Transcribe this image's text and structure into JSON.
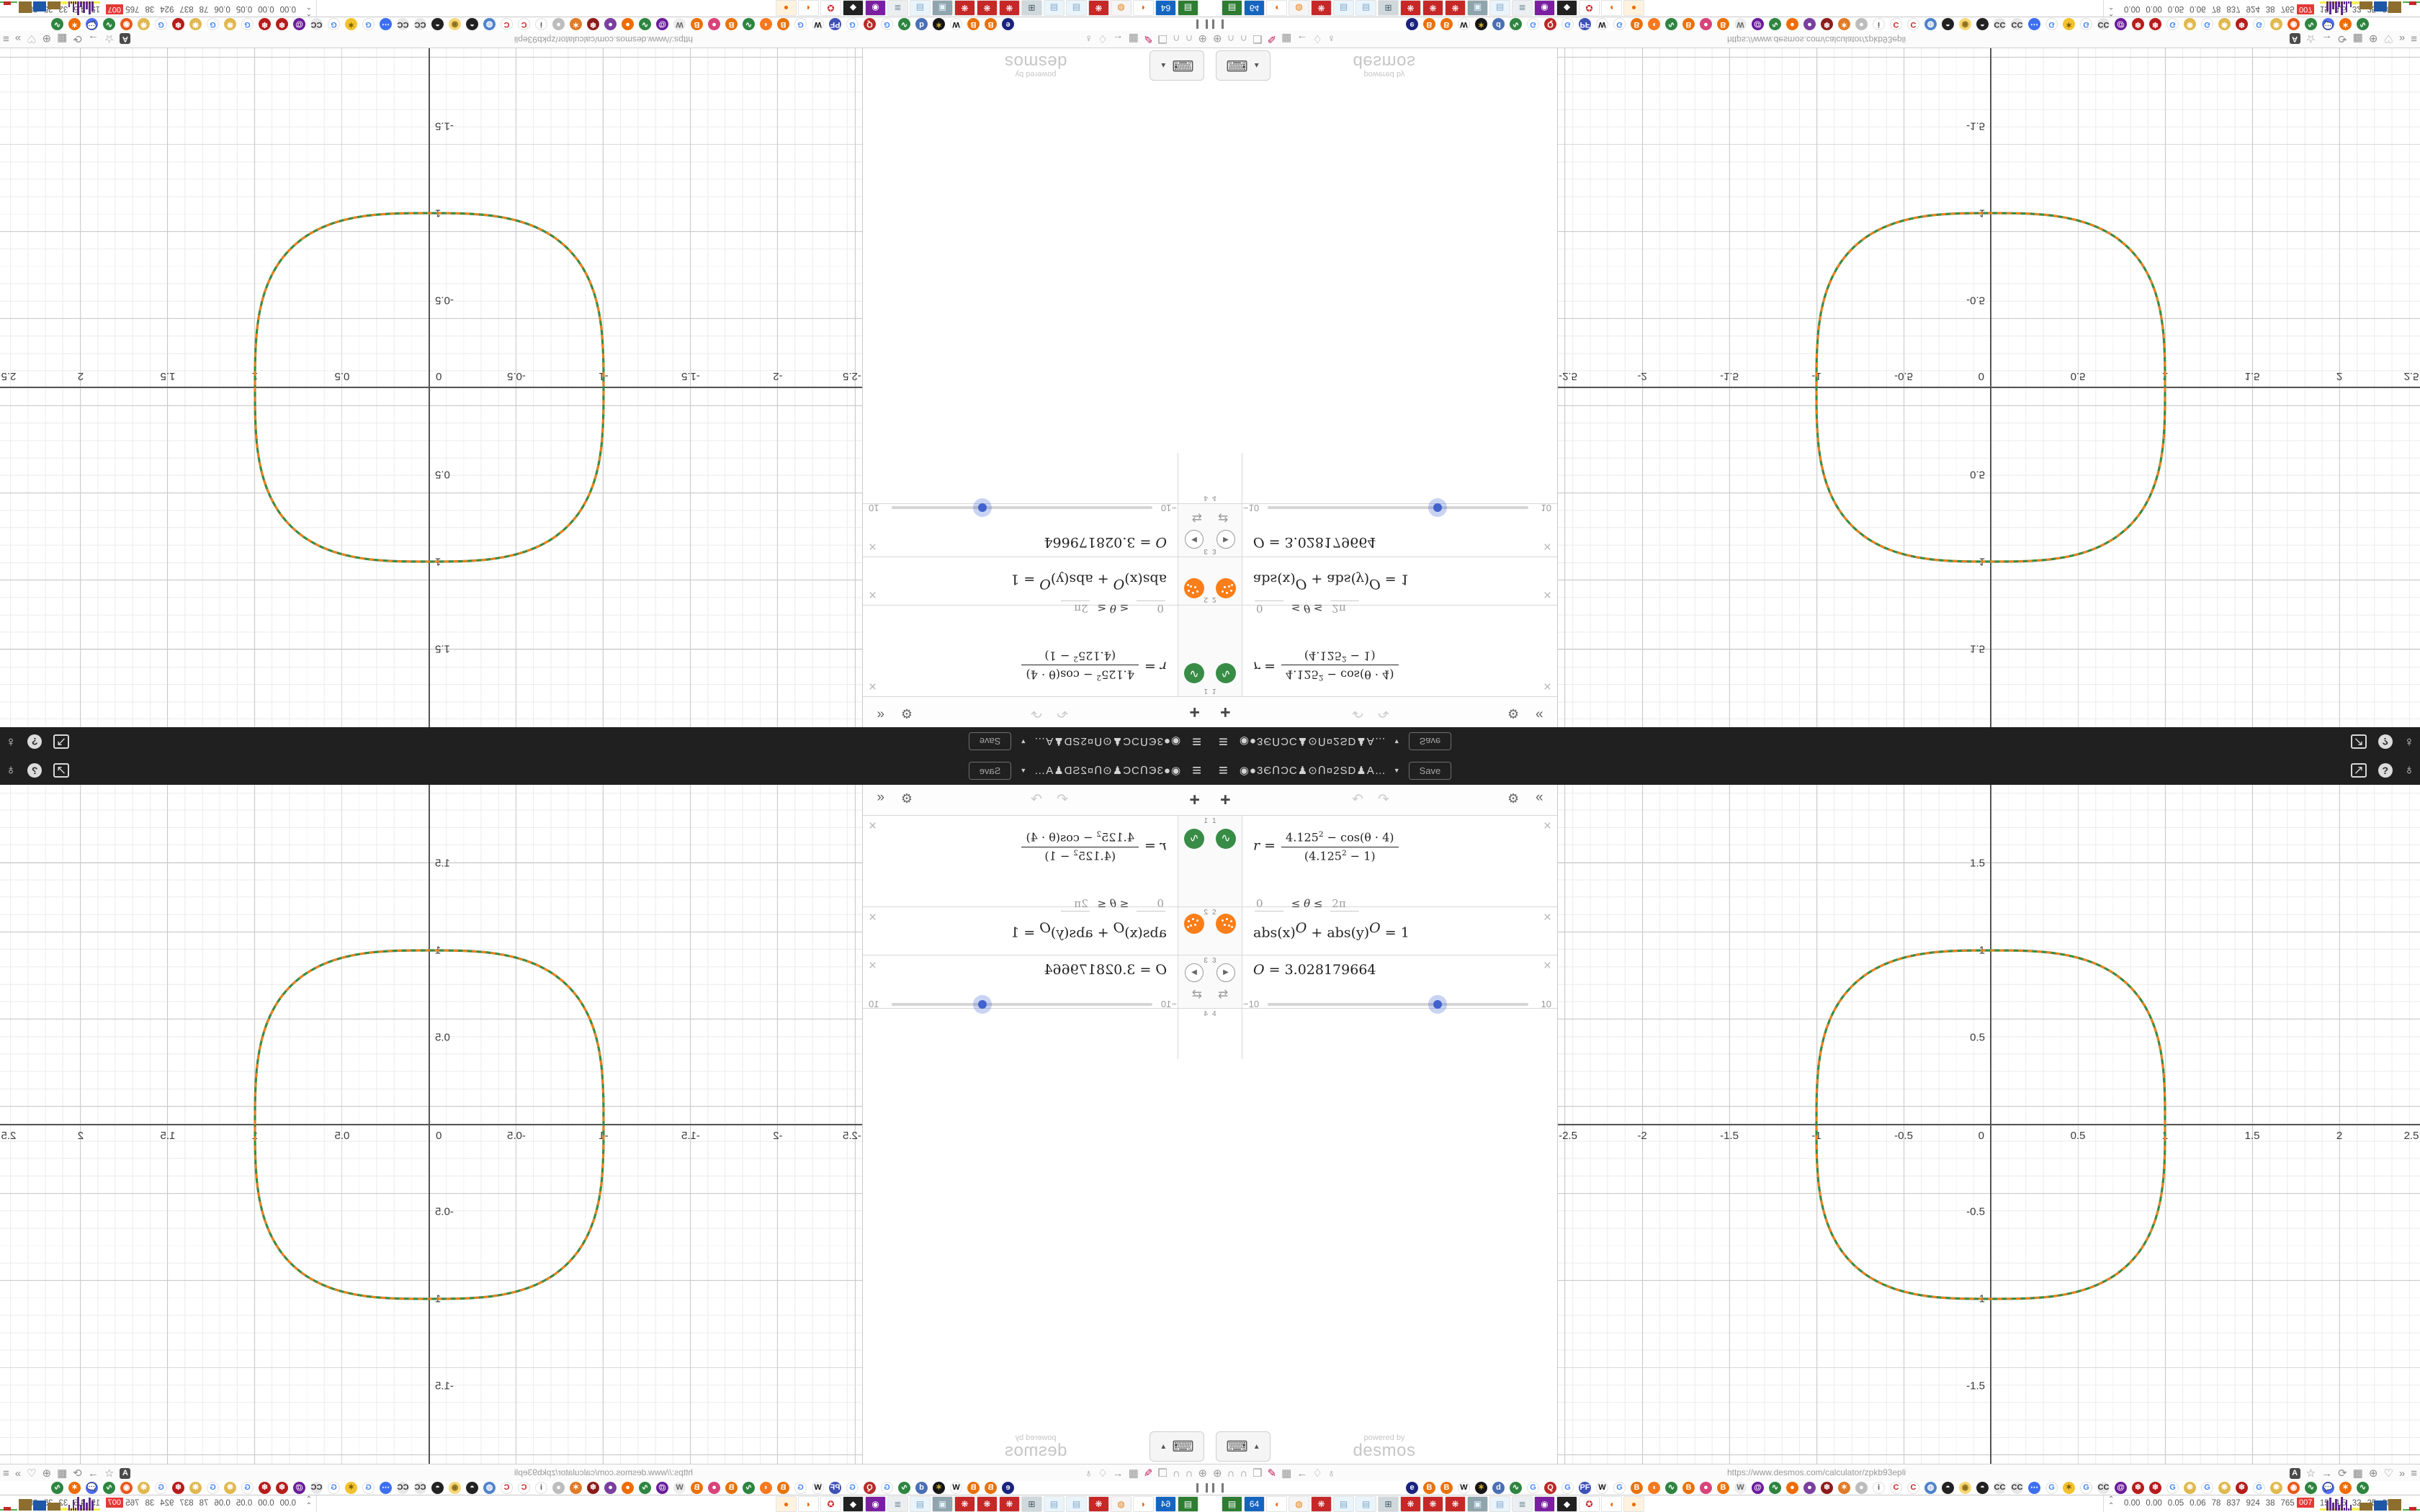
{
  "titlebar": {
    "menu_icon": "≡",
    "graph_title": "◉●3ЄՈƆC♟⊙Ո¤2SD♟A…",
    "caret": "▼",
    "save_label": "Save",
    "share_icon": "↗",
    "help_icon": "?",
    "globe_icon": "♁"
  },
  "expr_toolbar": {
    "add": "+",
    "undo": "↶",
    "redo": "↷",
    "gear": "⚙",
    "collapse": "«"
  },
  "ui": {
    "close": "×",
    "wave_icon": "∿",
    "play_icon": "▶",
    "loop_icon": "⇄"
  },
  "rows": [
    {
      "num": "1",
      "math": {
        "lhs": "r =",
        "num_base": "4.125",
        "num_sup": "2",
        "num_rest": " − cos(θ · 4)",
        "den_open": "(",
        "den_base": "4.125",
        "den_sup": "2",
        "den_rest": " − 1)"
      },
      "domain": {
        "lo": "0",
        "rel": "≤ θ ≤",
        "hi": "2π"
      }
    },
    {
      "num": "2",
      "math": {
        "a": "abs(x)",
        "supa": "O",
        "b": " + abs(y)",
        "supb": "O",
        "c": " = 1"
      }
    },
    {
      "num": "3",
      "math": {
        "var": "O",
        "val": " = 3.028179664"
      },
      "slider": {
        "min": "−10",
        "max": "10",
        "value": 3.028179664,
        "pct": 65.1
      }
    },
    {
      "num": "4"
    }
  ],
  "keyboard_chip": {
    "icon": "⌨",
    "caret": "▲"
  },
  "watermark": {
    "line1": "powered by",
    "line2": "desmos"
  },
  "graph": {
    "x_labels": [
      "-2.5",
      "-2",
      "-1.5",
      "-1",
      "-0.5",
      "0",
      "0.5",
      "1",
      "1.5",
      "2",
      "2.5"
    ],
    "x_values": [
      -2.5,
      -2,
      -1.5,
      -1,
      -0.5,
      0,
      0.5,
      1,
      1.5,
      2,
      2.5
    ],
    "y_labels": [
      "1.5",
      "1",
      "0.5",
      "-0.5",
      "-1",
      "-1.5"
    ],
    "y_values": [
      1.5,
      1,
      0.5,
      -0.5,
      -1,
      -1.5
    ],
    "controls": {
      "plus": "+",
      "minus": "−",
      "home": "⌂"
    },
    "curve_green": "#388c46",
    "curve_orange": "#fa7e19"
  },
  "chart_data": {
    "type": "line",
    "equations": [
      "r = (4.125² − cos(θ·4)) / (4.125² − 1), 0 ≤ θ ≤ 2π",
      "abs(x)^O + abs(y)^O = 1",
      "O = 3.028179664 (slider −10 to 10)"
    ],
    "series": [
      {
        "name": "polar curve r=(4.125²−cos(θ·4))/(4.125²−1)",
        "color": "#388c46",
        "style": "solid"
      },
      {
        "name": "superellipse abs(x)^O+abs(y)^O=1",
        "color": "#fa7e19",
        "style": "dashed"
      }
    ],
    "shape": "rounded square (superellipse) through (±1,0),(0,±1), corner radius bulge ≈1.06 at 45°",
    "x_range": [
      -2.48,
      2.46
    ],
    "y_range": [
      -1.95,
      1.93
    ],
    "minor_grid_step": 0.1,
    "major_grid_step": 0.5,
    "grid": true,
    "legend_position": "none"
  },
  "browser": {
    "url": "https://www.desmos.com/calculator/zpkb93epli",
    "left_icons": [
      "⊕",
      "∩",
      "∩",
      "❐",
      "✎",
      "▦",
      "←",
      "♢",
      "♁"
    ],
    "right_icons": [
      "A",
      "☆",
      "→",
      "⟳",
      "▦",
      "⊕",
      "♡",
      "»",
      "≡"
    ]
  },
  "favicons": [
    {
      "bg": "#1a237e",
      "fg": "#fff",
      "g": "e"
    },
    {
      "bg": "#e8720c",
      "fg": "#fff",
      "g": "B"
    },
    {
      "bg": "#e8720c",
      "fg": "#fff",
      "g": "B"
    },
    {
      "bg": "#ffffff",
      "fg": "#111",
      "g": "W"
    },
    {
      "bg": "#151515",
      "fg": "#d4af37",
      "g": "✶"
    },
    {
      "bg": "#4a6fb5",
      "fg": "#fff",
      "g": "d"
    },
    {
      "bg": "#2e8540",
      "fg": "#fff",
      "g": "∿"
    },
    {
      "bg": "#ffffff",
      "fg": "#4285f4",
      "g": "G"
    },
    {
      "bg": "#b92b27",
      "fg": "#fff",
      "g": "Q"
    },
    {
      "bg": "#ffffff",
      "fg": "#4285f4",
      "g": "G"
    },
    {
      "bg": "#3f51b5",
      "fg": "#fff",
      "g": "PF"
    },
    {
      "bg": "#ffffff",
      "fg": "#111",
      "g": "W"
    },
    {
      "bg": "#ffffff",
      "fg": "#4285f4",
      "g": "G"
    },
    {
      "bg": "#e8720c",
      "fg": "#fff",
      "g": "B"
    },
    {
      "bg": "#f57920",
      "fg": "#fff",
      "g": "◖"
    },
    {
      "bg": "#2e8540",
      "fg": "#fff",
      "g": "∿"
    },
    {
      "bg": "#e8720c",
      "fg": "#fff",
      "g": "B"
    },
    {
      "bg": "#d8437a",
      "fg": "#fff",
      "g": "●"
    },
    {
      "bg": "#e8720c",
      "fg": "#fff",
      "g": "B"
    },
    {
      "bg": "#ededed",
      "fg": "#666",
      "g": "W"
    },
    {
      "bg": "#6a1b9a",
      "fg": "#fff",
      "g": "@"
    },
    {
      "bg": "#2e8540",
      "fg": "#fff",
      "g": "∿"
    },
    {
      "bg": "#ef6c00",
      "fg": "#fff",
      "g": "●"
    },
    {
      "bg": "#7b3fa0",
      "fg": "#fff",
      "g": "●"
    },
    {
      "bg": "#8e1b1b",
      "fg": "#fff",
      "g": "❄"
    },
    {
      "bg": "#e07b28",
      "fg": "#fff",
      "g": "✶"
    },
    {
      "bg": "#bdbdbd",
      "fg": "#fff",
      "g": "●"
    },
    {
      "bg": "#ffffff",
      "fg": "#555",
      "g": "i"
    },
    {
      "bg": "#ffffff",
      "fg": "#c62828",
      "g": "C"
    },
    {
      "bg": "#ffffff",
      "fg": "#c62828",
      "g": "C"
    },
    {
      "bg": "#4f83cc",
      "fg": "#fff",
      "g": "◍"
    },
    {
      "bg": "#222222",
      "fg": "#fff",
      "g": "◓"
    },
    {
      "bg": "#f7d774",
      "fg": "#8a6d1a",
      "g": "◉"
    },
    {
      "bg": "#222222",
      "fg": "#fff",
      "g": "◓"
    },
    {
      "bg": "#e6e6e6",
      "fg": "#333",
      "g": "CC"
    },
    {
      "bg": "#e6e6e6",
      "fg": "#333",
      "g": "CC"
    },
    {
      "bg": "#3d6ff2",
      "fg": "#fff",
      "g": "⋯"
    },
    {
      "bg": "#ffffff",
      "fg": "#4285f4",
      "g": "G"
    },
    {
      "bg": "#f2c230",
      "fg": "#7a5a00",
      "g": "✶"
    },
    {
      "bg": "#ffffff",
      "fg": "#4285f4",
      "g": "G"
    },
    {
      "bg": "#e6e6e6",
      "fg": "#333",
      "g": "CC"
    },
    {
      "bg": "#6a1b9a",
      "fg": "#fff",
      "g": "@"
    },
    {
      "bg": "#b71c1c",
      "fg": "#fff",
      "g": "❄"
    },
    {
      "bg": "#b71c1c",
      "fg": "#fff",
      "g": "❄"
    },
    {
      "bg": "#ffffff",
      "fg": "#4285f4",
      "g": "G"
    },
    {
      "bg": "#e0b84f",
      "fg": "#fff",
      "g": "❋"
    },
    {
      "bg": "#ffffff",
      "fg": "#4285f4",
      "g": "G"
    },
    {
      "bg": "#e0b84f",
      "fg": "#fff",
      "g": "❋"
    },
    {
      "bg": "#b71c1c",
      "fg": "#fff",
      "g": "❄"
    },
    {
      "bg": "#ffffff",
      "fg": "#4285f4",
      "g": "G"
    },
    {
      "bg": "#e0b84f",
      "fg": "#fff",
      "g": "❋"
    },
    {
      "bg": "#e8581c",
      "fg": "#fff",
      "g": "◉"
    },
    {
      "bg": "#2e8540",
      "fg": "#fff",
      "g": "∿"
    },
    {
      "bg": "#4f6ef7",
      "fg": "#fff",
      "g": "💬"
    },
    {
      "bg": "#ef6c00",
      "fg": "#fff",
      "g": "✶"
    },
    {
      "bg": "#2e8540",
      "fg": "#fff",
      "g": "∿"
    }
  ],
  "taskbar_apps": [
    {
      "bg": "#2e7d32",
      "fg": "#fff",
      "g": "▤"
    },
    {
      "bg": "#1565c0",
      "fg": "#fff",
      "g": "64"
    },
    {
      "bg": "#ffffff",
      "fg": "#e66000",
      "g": "◖"
    },
    {
      "bg": "#f5f5f5",
      "fg": "#e87d0d",
      "g": "◍"
    },
    {
      "bg": "#c62828",
      "fg": "#fff",
      "g": "❋"
    },
    {
      "bg": "#eaf4fb",
      "fg": "#7fa8c9",
      "g": "▤"
    },
    {
      "bg": "#eaf4fb",
      "fg": "#7fa8c9",
      "g": "▤"
    },
    {
      "bg": "#cfd8dc",
      "fg": "#455a64",
      "g": "⊞"
    },
    {
      "bg": "#c62828",
      "fg": "#fff",
      "g": "❋"
    },
    {
      "bg": "#c62828",
      "fg": "#fff",
      "g": "❋"
    },
    {
      "bg": "#c62828",
      "fg": "#fff",
      "g": "❋"
    },
    {
      "bg": "#90a4ae",
      "fg": "#e3f2fd",
      "g": "▣"
    },
    {
      "bg": "#eaf4fb",
      "fg": "#7fa8c9",
      "g": "▤"
    },
    {
      "bg": "#eceff1",
      "fg": "#78909c",
      "g": "≣"
    },
    {
      "bg": "#7b1fa2",
      "fg": "#fff",
      "g": "◉"
    },
    {
      "bg": "#212121",
      "fg": "#fff",
      "g": "◆"
    },
    {
      "bg": "#ffffff",
      "fg": "#c62828",
      "g": "✪"
    },
    {
      "bg": "#ffffff",
      "fg": "#e66000",
      "g": "◖"
    },
    {
      "bg": "#fff3e0",
      "fg": "#ef6c00",
      "g": "●"
    }
  ],
  "stats": {
    "chevron": "⌃",
    "values": [
      "0.00",
      "0.00",
      "0.05",
      "0.06",
      "78",
      "837",
      "924",
      "38",
      "765",
      "536",
      "15",
      "4.5",
      "32",
      "25",
      "6871"
    ],
    "badge": "007",
    "sparks": [
      {
        "x": 300,
        "w": 62,
        "h": 3,
        "c": "#f3ef54"
      },
      {
        "x": 309,
        "w": 3,
        "h": 14,
        "c": "#5e2a8a"
      },
      {
        "x": 313,
        "w": 3,
        "h": 18,
        "c": "#5e2a8a"
      },
      {
        "x": 317,
        "w": 3,
        "h": 11,
        "c": "#5e2a8a"
      },
      {
        "x": 321,
        "w": 3,
        "h": 16,
        "c": "#5e2a8a"
      },
      {
        "x": 325,
        "w": 3,
        "h": 8,
        "c": "#5e2a8a"
      },
      {
        "x": 329,
        "w": 3,
        "h": 19,
        "c": "#5e2a8a"
      },
      {
        "x": 333,
        "w": 2,
        "h": 4,
        "c": "#5e2a8a"
      },
      {
        "x": 336,
        "w": 2,
        "h": 15,
        "c": "#5e2a8a"
      },
      {
        "x": 339,
        "w": 2,
        "h": 3,
        "c": "#5e2a8a"
      },
      {
        "x": 342,
        "w": 2,
        "h": 8,
        "c": "#5e2a8a"
      },
      {
        "x": 345,
        "w": 8,
        "h": 4,
        "c": "#f3ef54"
      },
      {
        "x": 355,
        "w": 18,
        "h": 11,
        "c": "#8d6e2f"
      },
      {
        "x": 375,
        "w": 18,
        "h": 14,
        "c": "#1f57a8"
      },
      {
        "x": 395,
        "w": 18,
        "h": 16,
        "c": "#8d6e2f"
      },
      {
        "x": 415,
        "w": 24,
        "h": 2,
        "c": "#46b24a"
      },
      {
        "x": 424,
        "w": 10,
        "h": 5,
        "c": "#c62828"
      }
    ]
  }
}
